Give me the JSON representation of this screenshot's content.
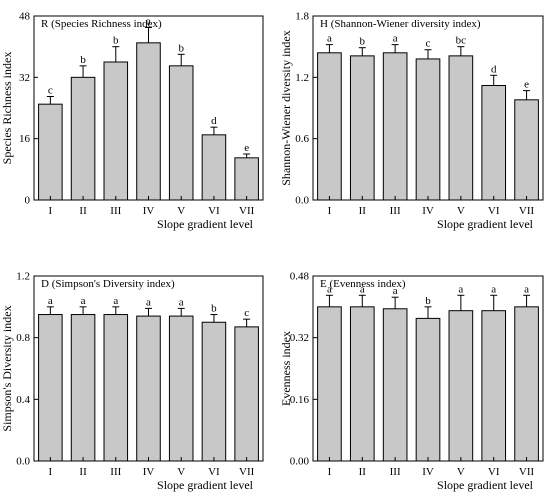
{
  "chart_data": [
    {
      "type": "bar",
      "title": "R (Species Richness index)",
      "xlabel": "Slope gradient level",
      "ylabel": "Species Richness index",
      "categories": [
        "I",
        "II",
        "III",
        "IV",
        "V",
        "VI",
        "VII"
      ],
      "values": [
        25,
        32,
        36,
        41,
        35,
        17,
        11
      ],
      "errors": [
        2,
        3,
        4,
        4,
        3,
        2,
        1
      ],
      "letters": [
        "c",
        "b",
        "b",
        "a",
        "b",
        "d",
        "e"
      ],
      "ylim": [
        0,
        48
      ],
      "yticks": [
        "0",
        "16",
        "32",
        "48"
      ],
      "ytick_values": [
        0,
        16,
        32,
        48
      ]
    },
    {
      "type": "bar",
      "title": "H (Shannon-Wiener diversity index)",
      "xlabel": "Slope gradient level",
      "ylabel": "Shannon-Wiener diversity index",
      "categories": [
        "I",
        "II",
        "III",
        "IV",
        "V",
        "VI",
        "VII"
      ],
      "values": [
        1.44,
        1.41,
        1.44,
        1.38,
        1.41,
        1.12,
        0.98
      ],
      "errors": [
        0.08,
        0.08,
        0.08,
        0.09,
        0.09,
        0.1,
        0.09
      ],
      "letters": [
        "a",
        "b",
        "a",
        "c",
        "bc",
        "d",
        "e"
      ],
      "ylim": [
        0,
        1.8
      ],
      "yticks": [
        "0.0",
        "0.6",
        "1.2",
        "1.8"
      ],
      "ytick_values": [
        0,
        0.6,
        1.2,
        1.8
      ]
    },
    {
      "type": "bar",
      "title": "D (Simpson's Diversity index)",
      "xlabel": "Slope gradient level",
      "ylabel": "Simpson's Diversity index",
      "categories": [
        "I",
        "II",
        "III",
        "IV",
        "V",
        "VI",
        "VII"
      ],
      "values": [
        0.95,
        0.95,
        0.95,
        0.94,
        0.94,
        0.9,
        0.87
      ],
      "errors": [
        0.05,
        0.05,
        0.05,
        0.05,
        0.05,
        0.05,
        0.05
      ],
      "letters": [
        "a",
        "a",
        "a",
        "a",
        "a",
        "b",
        "c"
      ],
      "ylim": [
        0,
        1.2
      ],
      "yticks": [
        "0.0",
        "0.4",
        "0.8",
        "1.2"
      ],
      "ytick_values": [
        0,
        0.4,
        0.8,
        1.2
      ]
    },
    {
      "type": "bar",
      "title": "E (Evenness index)",
      "xlabel": "Slope gradient level",
      "ylabel": "Evenness index",
      "categories": [
        "I",
        "II",
        "III",
        "IV",
        "V",
        "VI",
        "VII"
      ],
      "values": [
        0.4,
        0.4,
        0.395,
        0.37,
        0.39,
        0.39,
        0.4
      ],
      "errors": [
        0.03,
        0.03,
        0.03,
        0.03,
        0.04,
        0.04,
        0.03
      ],
      "letters": [
        "a",
        "a",
        "a",
        "b",
        "a",
        "a",
        "a"
      ],
      "ylim": [
        0,
        0.48
      ],
      "yticks": [
        "0.00",
        "0.16",
        "0.32",
        "0.48"
      ],
      "ytick_values": [
        0,
        0.16,
        0.32,
        0.48
      ]
    }
  ],
  "colors": {
    "bar_fill": "#c8c8c8",
    "stroke": "#000000"
  }
}
